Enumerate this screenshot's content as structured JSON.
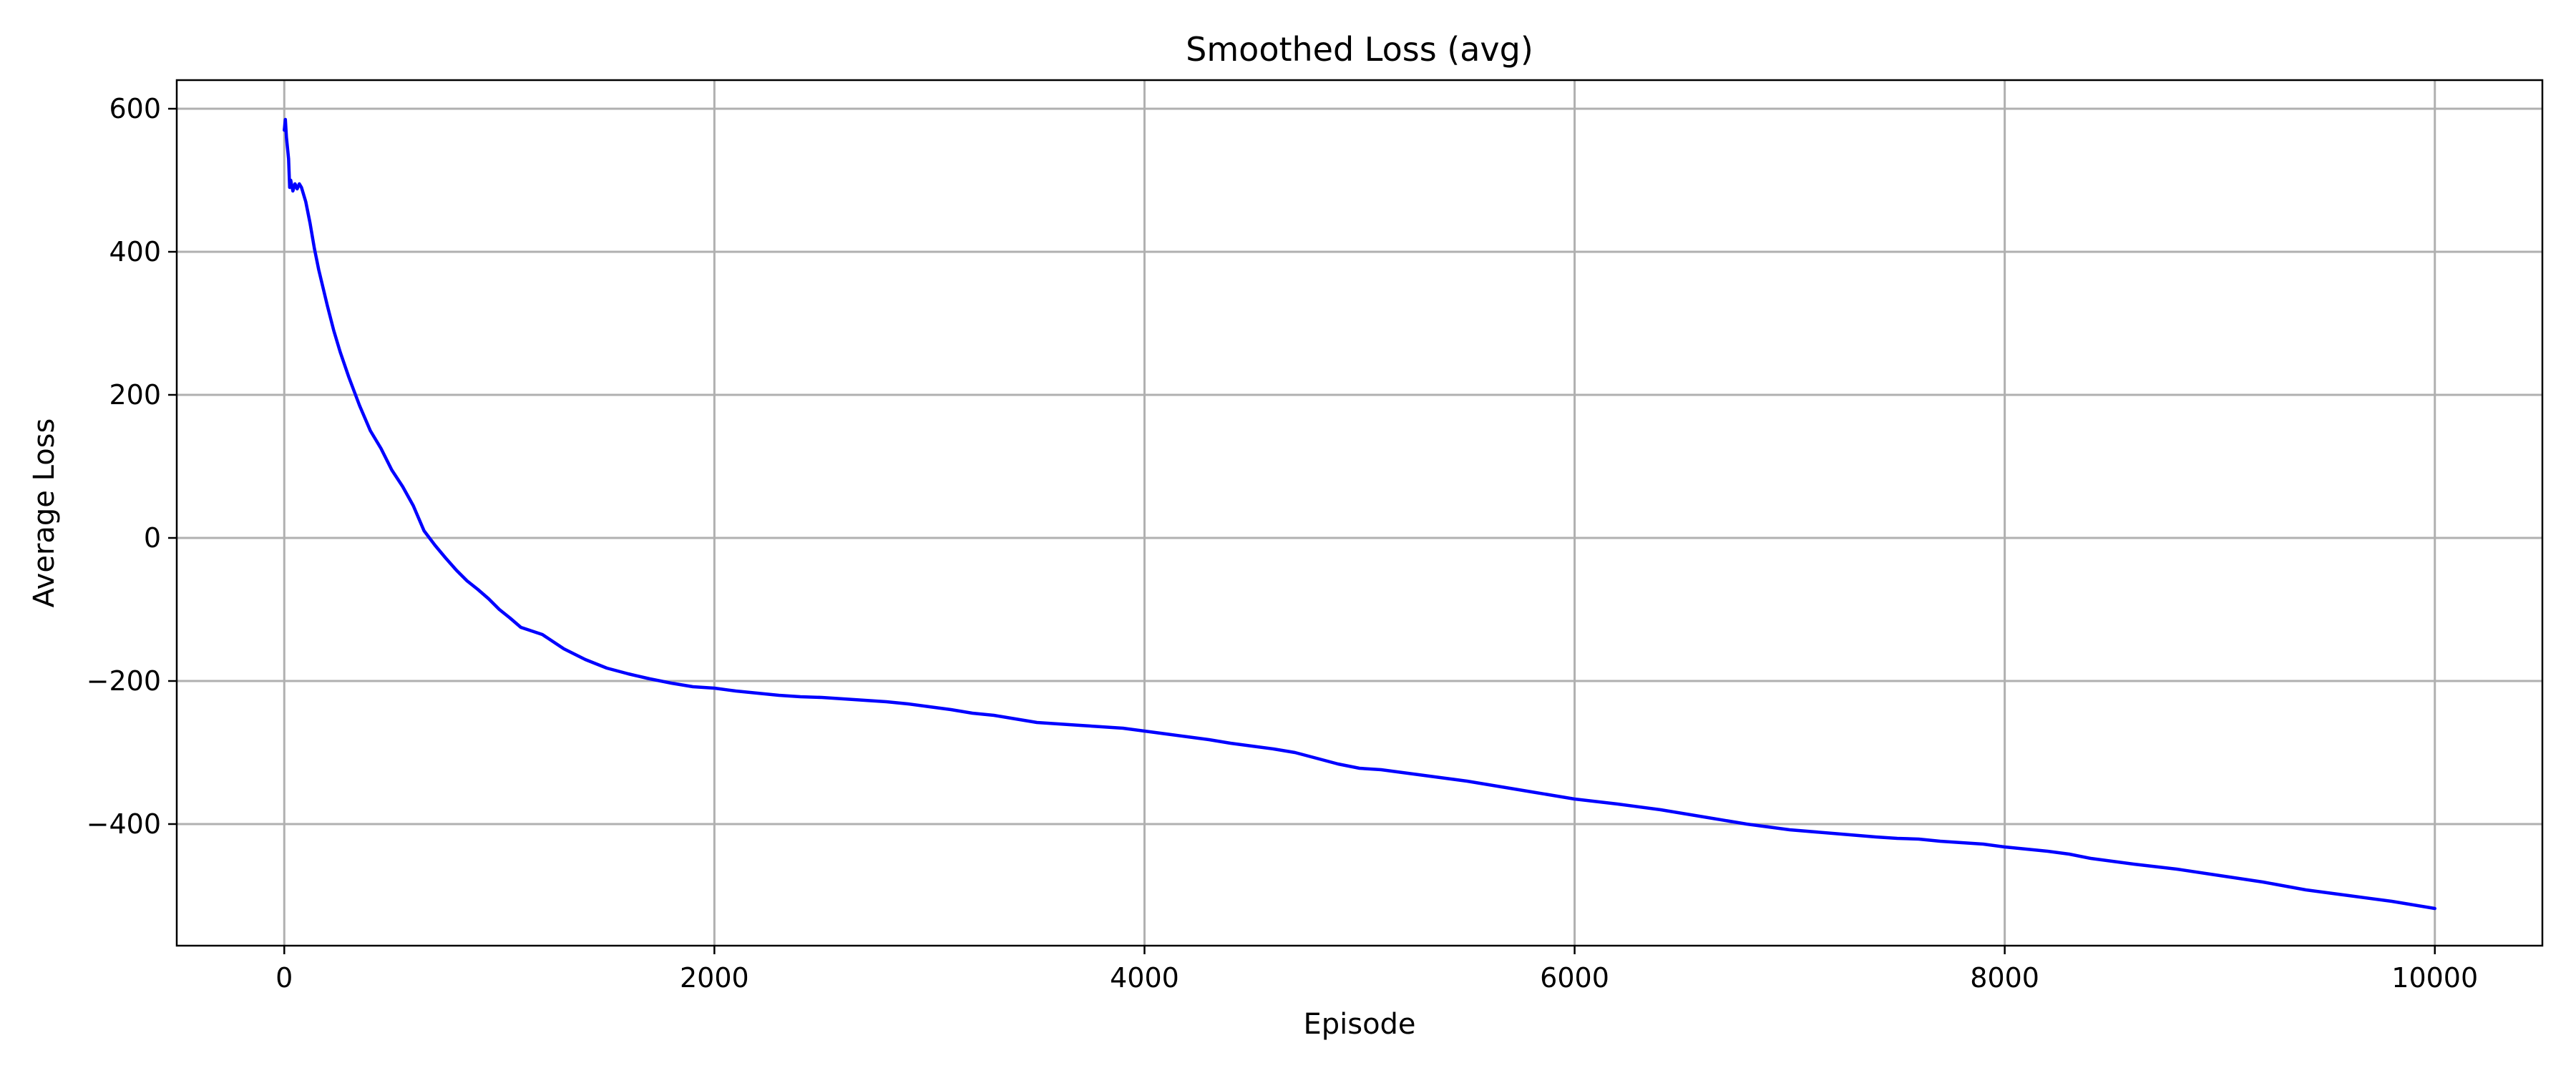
{
  "chart_data": {
    "type": "line",
    "title": "Smoothed Loss (avg)",
    "xlabel": "Episode",
    "ylabel": "Average Loss",
    "xlim": [
      -500,
      10500
    ],
    "ylim": [
      -570,
      640
    ],
    "grid": true,
    "legend": "none",
    "xticks": [
      0,
      2000,
      4000,
      6000,
      8000,
      10000
    ],
    "xtick_labels": [
      "0",
      "2000",
      "4000",
      "6000",
      "8000",
      "10000"
    ],
    "yticks": [
      -400,
      -200,
      0,
      200,
      400,
      600
    ],
    "ytick_labels": [
      "−400",
      "−200",
      "0",
      "200",
      "400",
      "600"
    ],
    "series": [
      {
        "name": "Smoothed Loss (avg)",
        "color": "#0000ff",
        "x": [
          0,
          5,
          10,
          15,
          20,
          25,
          30,
          40,
          50,
          60,
          70,
          80,
          90,
          100,
          120,
          140,
          160,
          180,
          200,
          230,
          260,
          300,
          350,
          400,
          450,
          500,
          550,
          600,
          650,
          700,
          750,
          800,
          850,
          900,
          950,
          1000,
          1050,
          1100,
          1150,
          1200,
          1300,
          1400,
          1500,
          1600,
          1700,
          1800,
          1900,
          2000,
          2100,
          2200,
          2300,
          2400,
          2500,
          2600,
          2700,
          2800,
          2900,
          3000,
          3100,
          3200,
          3300,
          3400,
          3500,
          3600,
          3700,
          3800,
          3900,
          4000,
          4100,
          4200,
          4300,
          4400,
          4500,
          4600,
          4700,
          4800,
          4900,
          5000,
          5100,
          5200,
          5300,
          5400,
          5500,
          5600,
          5700,
          5800,
          5900,
          6000,
          6200,
          6400,
          6600,
          6800,
          7000,
          7200,
          7400,
          7500,
          7600,
          7700,
          7800,
          7900,
          8000,
          8100,
          8200,
          8300,
          8400,
          8600,
          8800,
          9000,
          9200,
          9400,
          9600,
          9800,
          10000
        ],
        "values": [
          570,
          585,
          560,
          545,
          530,
          490,
          500,
          485,
          495,
          488,
          495,
          490,
          480,
          470,
          440,
          405,
          375,
          350,
          325,
          290,
          260,
          225,
          185,
          150,
          125,
          95,
          72,
          45,
          10,
          -10,
          -28,
          -45,
          -60,
          -72,
          -85,
          -100,
          -112,
          -125,
          -130,
          -135,
          -155,
          -170,
          -182,
          -190,
          -197,
          -203,
          -208,
          -210,
          -214,
          -217,
          -220,
          -222,
          -223,
          -225,
          -227,
          -229,
          -232,
          -236,
          -240,
          -245,
          -248,
          -253,
          -258,
          -260,
          -262,
          -264,
          -266,
          -270,
          -274,
          -278,
          -282,
          -287,
          -291,
          -295,
          -300,
          -308,
          -316,
          -322,
          -324,
          -328,
          -332,
          -336,
          -340,
          -345,
          -350,
          -355,
          -360,
          -365,
          -372,
          -380,
          -390,
          -400,
          -408,
          -413,
          -418,
          -420,
          -421,
          -424,
          -426,
          -428,
          -432,
          -435,
          -438,
          -442,
          -448,
          -456,
          -463,
          -472,
          -481,
          -492,
          -500,
          -508,
          -518
        ]
      }
    ]
  }
}
